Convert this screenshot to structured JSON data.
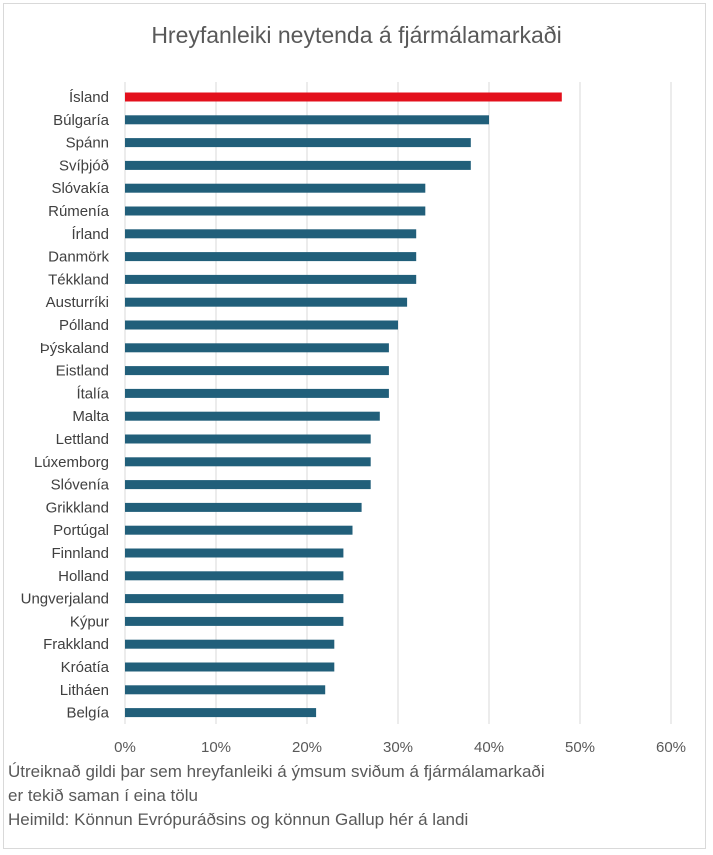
{
  "colors": {
    "highlight": "#e3101c",
    "bar": "#215f7a",
    "grid": "#d9d9d9"
  },
  "chart_data": {
    "type": "bar",
    "orientation": "horizontal",
    "title": "Hreyfanleiki neytenda á fjármálamarkaði",
    "categories": [
      "Ísland",
      "Búlgaría",
      "Spánn",
      "Svíþjóð",
      "Slóvakía",
      "Rúmenía",
      "Írland",
      "Danmörk",
      "Tékkland",
      "Austurríki",
      "Pólland",
      "Þýskaland",
      "Eistland",
      "Ítalía",
      "Malta",
      "Lettland",
      "Lúxemborg",
      "Slóvenía",
      "Grikkland",
      "Portúgal",
      "Finnland",
      "Holland",
      "Ungverjaland",
      "Kýpur",
      "Frakkland",
      "Króatía",
      "Litháen",
      "Belgía"
    ],
    "values": [
      48,
      40,
      38,
      38,
      33,
      33,
      32,
      32,
      32,
      31,
      30,
      29,
      29,
      29,
      28,
      27,
      27,
      27,
      26,
      25,
      24,
      24,
      24,
      24,
      23,
      23,
      22,
      21
    ],
    "highlighted_category": "Ísland",
    "xlim": [
      0,
      60
    ],
    "xticks": [
      0,
      10,
      20,
      30,
      40,
      50,
      60
    ],
    "tick_labels": [
      "0%",
      "10%",
      "20%",
      "30%",
      "40%",
      "50%",
      "60%"
    ],
    "grid": "vertical",
    "legend": "none"
  },
  "notes": {
    "line1": "Útreiknað gildi þar sem hreyfanleiki á ýmsum sviðum á fjármálamarkaði",
    "line2": "er tekið saman í eina tölu",
    "source": "Heimild: Könnun Evrópuráðsins og könnun Gallup hér á landi"
  }
}
